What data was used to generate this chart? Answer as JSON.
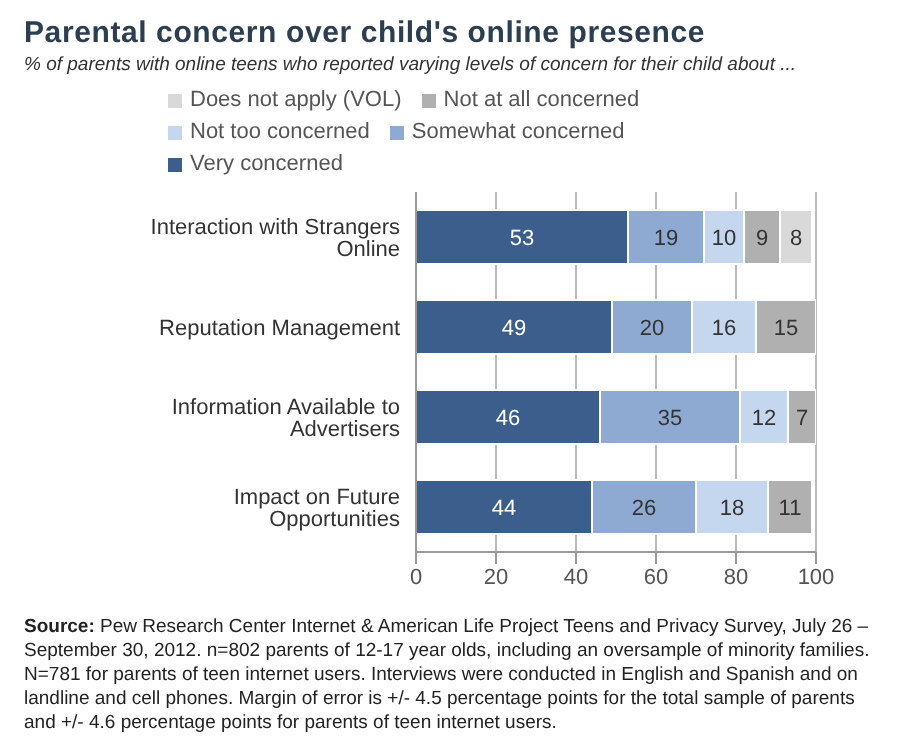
{
  "chart_data": {
    "type": "bar",
    "orientation": "horizontal",
    "stacked": true,
    "title": "Parental concern over child's online presence",
    "subtitle": "% of parents with online teens who reported varying levels of concern for their child about ...",
    "categories": [
      "Interaction with Strangers Online",
      "Reputation Management",
      "Information Available to Advertisers",
      "Impact on Future Opportunities"
    ],
    "series": [
      {
        "name": "Very concerned",
        "color": "#3b5e8c",
        "values": [
          53,
          49,
          46,
          44
        ]
      },
      {
        "name": "Somewhat concerned",
        "color": "#8eaad2",
        "values": [
          19,
          20,
          35,
          26
        ]
      },
      {
        "name": "Not too concerned",
        "color": "#c5d7ee",
        "values": [
          10,
          16,
          12,
          18
        ]
      },
      {
        "name": "Not at all concerned",
        "color": "#b0b0b0",
        "values": [
          9,
          15,
          7,
          11
        ]
      },
      {
        "name": "Does not apply (VOL)",
        "color": "#d9d9d9",
        "values": [
          8,
          null,
          null,
          null
        ]
      }
    ],
    "xlim": [
      0,
      100
    ],
    "xticks": [
      0,
      20,
      40,
      60,
      80,
      100
    ],
    "grid": "x",
    "legend": "top",
    "data_labels": true,
    "annotations": [
      "Source: Pew Research Center Internet & American Life Project Teens and Privacy Survey, July 26 – September 30, 2012. n=802 parents of 12-17 year olds, including an oversample of minority families. N=781 for parents of teen internet users.  Interviews were conducted in English and Spanish and on landline and cell phones.  Margin of error is +/- 4.5 percentage points for the total sample of parents and +/- 4.6 percentage points for parents of teen internet users."
    ]
  }
}
